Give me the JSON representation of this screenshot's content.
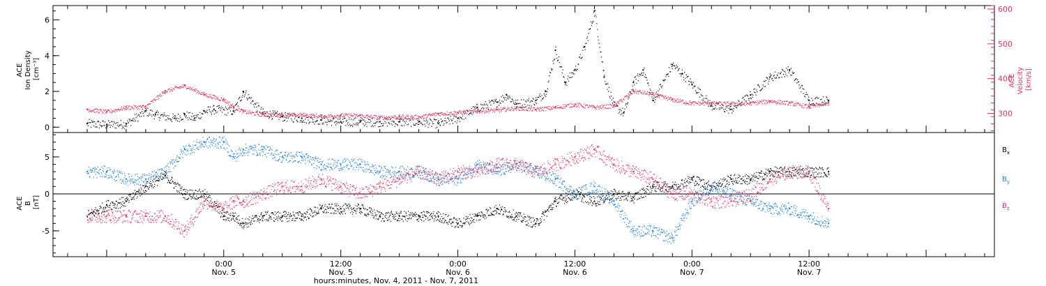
{
  "chart_data": [
    {
      "type": "scatter",
      "panel": "top",
      "left_axis": {
        "title_lines": [
          "ACE",
          "Ion Density",
          "[cm⁻³]"
        ],
        "range": [
          -0.3,
          6.8
        ],
        "ticks": [
          0,
          2,
          4,
          6
        ],
        "tick_labels": [
          "0",
          "2",
          "4",
          "6"
        ]
      },
      "right_axis": {
        "title_lines": [
          "ACE",
          "Velocity",
          "[km/s]"
        ],
        "range": [
          245,
          610
        ],
        "ticks": [
          300,
          400,
          500,
          600
        ],
        "tick_labels": [
          "300",
          "400",
          "500",
          "600"
        ],
        "color": "#e0335d"
      },
      "series": [
        {
          "color": "#000000",
          "axis": "left",
          "points": [
            [
              -14,
              0.2
            ],
            [
              -12,
              0.15
            ],
            [
              -10,
              0.2
            ],
            [
              -8,
              0.9
            ],
            [
              -7,
              0.7
            ],
            [
              -5,
              0.5
            ],
            [
              -4,
              0.7
            ],
            [
              -3,
              0.5
            ],
            [
              -2,
              0.9
            ],
            [
              -1,
              1.0
            ],
            [
              1,
              0.9
            ],
            [
              2,
              2.0
            ],
            [
              4,
              0.8
            ],
            [
              6,
              0.6
            ],
            [
              8,
              0.5
            ],
            [
              10,
              0.4
            ],
            [
              12,
              0.3
            ],
            [
              14,
              0.3
            ],
            [
              16,
              0.3
            ],
            [
              18,
              0.3
            ],
            [
              20,
              0.3
            ],
            [
              22,
              0.2
            ],
            [
              24,
              0.5
            ],
            [
              26,
              1.1
            ],
            [
              28,
              1.4
            ],
            [
              29,
              1.8
            ],
            [
              30,
              1.3
            ],
            [
              32,
              1.5
            ],
            [
              33,
              2.0
            ],
            [
              34,
              4.3
            ],
            [
              35,
              2.5
            ],
            [
              36,
              3.2
            ],
            [
              37,
              4.5
            ],
            [
              38,
              6.5
            ],
            [
              39,
              2.8
            ],
            [
              40,
              1.2
            ],
            [
              41,
              0.8
            ],
            [
              42,
              2.5
            ],
            [
              43,
              3.2
            ],
            [
              44,
              1.5
            ],
            [
              46,
              3.5
            ],
            [
              47,
              3.0
            ],
            [
              48,
              2.4
            ],
            [
              50,
              1.2
            ],
            [
              52,
              1.0
            ],
            [
              54,
              1.8
            ],
            [
              56,
              2.8
            ],
            [
              58,
              3.2
            ],
            [
              60,
              1.5
            ],
            [
              62,
              1.5
            ]
          ]
        },
        {
          "color": "#e0335d",
          "axis": "right",
          "points": [
            [
              -14,
              312
            ],
            [
              -12,
              305
            ],
            [
              -10,
              318
            ],
            [
              -8,
              320
            ],
            [
              -6,
              365
            ],
            [
              -4,
              380
            ],
            [
              -2,
              355
            ],
            [
              0,
              340
            ],
            [
              1,
              320
            ],
            [
              2,
              306
            ],
            [
              4,
              297
            ],
            [
              6,
              296
            ],
            [
              8,
              296
            ],
            [
              10,
              292
            ],
            [
              12,
              295
            ],
            [
              14,
              294
            ],
            [
              16,
              289
            ],
            [
              18,
              291
            ],
            [
              20,
              290
            ],
            [
              22,
              300
            ],
            [
              24,
              303
            ],
            [
              26,
              307
            ],
            [
              28,
              310
            ],
            [
              30,
              316
            ],
            [
              32,
              312
            ],
            [
              34,
              318
            ],
            [
              36,
              326
            ],
            [
              38,
              318
            ],
            [
              40,
              322
            ],
            [
              42,
              365
            ],
            [
              44,
              355
            ],
            [
              46,
              340
            ],
            [
              48,
              330
            ],
            [
              50,
              330
            ],
            [
              52,
              328
            ],
            [
              54,
              330
            ],
            [
              56,
              336
            ],
            [
              58,
              330
            ],
            [
              60,
              320
            ],
            [
              62,
              330
            ]
          ]
        }
      ]
    },
    {
      "type": "scatter",
      "panel": "bottom",
      "left_axis": {
        "title_lines": [
          "ACE",
          "B",
          "[nT]"
        ],
        "range": [
          -8.5,
          8.3
        ],
        "ticks": [
          -5,
          0,
          5
        ],
        "tick_labels": [
          "-5",
          "0",
          "5"
        ]
      },
      "legend": [
        {
          "label": "B",
          "subscript": "x",
          "color": "#000000"
        },
        {
          "label": "B",
          "subscript": "y",
          "color": "#1a7fdc"
        },
        {
          "label": "B",
          "subscript": "z",
          "color": "#e0335d"
        }
      ],
      "series": [
        {
          "color": "#000000",
          "points": [
            [
              -14,
              -3
            ],
            [
              -12,
              -1.5
            ],
            [
              -10,
              -1
            ],
            [
              -8,
              1
            ],
            [
              -6,
              2.5
            ],
            [
              -4,
              0
            ],
            [
              -2,
              0
            ],
            [
              0,
              -3
            ],
            [
              1,
              -3
            ],
            [
              2,
              -4
            ],
            [
              4,
              -3
            ],
            [
              6,
              -3
            ],
            [
              8,
              -3
            ],
            [
              10,
              -2
            ],
            [
              12,
              -2
            ],
            [
              14,
              -2
            ],
            [
              16,
              -3
            ],
            [
              18,
              -3
            ],
            [
              20,
              -3
            ],
            [
              22,
              -3
            ],
            [
              24,
              -4
            ],
            [
              26,
              -3
            ],
            [
              28,
              -2
            ],
            [
              30,
              -3
            ],
            [
              32,
              -4
            ],
            [
              34,
              -1
            ],
            [
              36,
              0
            ],
            [
              38,
              -1
            ],
            [
              40,
              0
            ],
            [
              42,
              -0.5
            ],
            [
              44,
              1
            ],
            [
              46,
              1
            ],
            [
              48,
              2
            ],
            [
              50,
              1
            ],
            [
              52,
              2
            ],
            [
              54,
              2
            ],
            [
              56,
              3
            ],
            [
              58,
              3
            ],
            [
              60,
              3
            ],
            [
              62,
              3
            ]
          ]
        },
        {
          "color": "#1a7fdc",
          "points": [
            [
              -14,
              3
            ],
            [
              -12,
              3
            ],
            [
              -10,
              2
            ],
            [
              -8,
              2
            ],
            [
              -6,
              3
            ],
            [
              -4,
              6
            ],
            [
              -2,
              7
            ],
            [
              0,
              7
            ],
            [
              1,
              5
            ],
            [
              2,
              6
            ],
            [
              4,
              6
            ],
            [
              6,
              5
            ],
            [
              8,
              5
            ],
            [
              10,
              4
            ],
            [
              12,
              4
            ],
            [
              14,
              4
            ],
            [
              16,
              3
            ],
            [
              18,
              3
            ],
            [
              20,
              3
            ],
            [
              22,
              2
            ],
            [
              24,
              2
            ],
            [
              26,
              4
            ],
            [
              28,
              3
            ],
            [
              30,
              4
            ],
            [
              32,
              3
            ],
            [
              34,
              2
            ],
            [
              36,
              0
            ],
            [
              38,
              1
            ],
            [
              40,
              -1
            ],
            [
              42,
              -5
            ],
            [
              44,
              -5
            ],
            [
              46,
              -6
            ],
            [
              48,
              -1
            ],
            [
              50,
              1
            ],
            [
              52,
              0
            ],
            [
              54,
              -1
            ],
            [
              56,
              -2
            ],
            [
              58,
              -2
            ],
            [
              60,
              -3
            ],
            [
              62,
              -4
            ]
          ]
        },
        {
          "color": "#e0335d",
          "points": [
            [
              -14,
              -3
            ],
            [
              -12,
              -3
            ],
            [
              -10,
              -3
            ],
            [
              -8,
              -3
            ],
            [
              -6,
              -3
            ],
            [
              -4,
              -5
            ],
            [
              -2,
              -1
            ],
            [
              0,
              -2
            ],
            [
              1,
              -1
            ],
            [
              2,
              -1
            ],
            [
              4,
              0
            ],
            [
              6,
              1
            ],
            [
              8,
              1
            ],
            [
              10,
              2
            ],
            [
              12,
              1
            ],
            [
              14,
              0
            ],
            [
              16,
              1
            ],
            [
              18,
              2
            ],
            [
              20,
              3
            ],
            [
              22,
              2
            ],
            [
              24,
              3
            ],
            [
              26,
              3
            ],
            [
              28,
              4
            ],
            [
              30,
              4
            ],
            [
              32,
              3
            ],
            [
              34,
              4
            ],
            [
              36,
              5
            ],
            [
              38,
              6
            ],
            [
              40,
              4
            ],
            [
              42,
              3
            ],
            [
              44,
              2
            ],
            [
              46,
              0
            ],
            [
              48,
              0
            ],
            [
              50,
              -1
            ],
            [
              52,
              -1
            ],
            [
              54,
              0
            ],
            [
              56,
              2
            ],
            [
              58,
              3
            ],
            [
              60,
              3
            ],
            [
              62,
              -2
            ]
          ]
        }
      ]
    }
  ],
  "time_axis": {
    "units": "hours relative to 00:00 Nov. 5, 2011",
    "range": [
      -17.5,
      79
    ],
    "major_ticks": [
      {
        "t": 0,
        "time": "0:00",
        "date": "Nov. 5"
      },
      {
        "t": 12,
        "time": "12:00",
        "date": "Nov. 5"
      },
      {
        "t": 24,
        "time": "0:00",
        "date": "Nov. 6"
      },
      {
        "t": 36,
        "time": "12:00",
        "date": "Nov. 6"
      },
      {
        "t": 48,
        "time": "0:00",
        "date": "Nov. 7"
      },
      {
        "t": 60,
        "time": "12:00",
        "date": "Nov. 7"
      }
    ],
    "title": "hours:minutes, Nov.  4, 2011 - Nov.  7, 2011"
  }
}
